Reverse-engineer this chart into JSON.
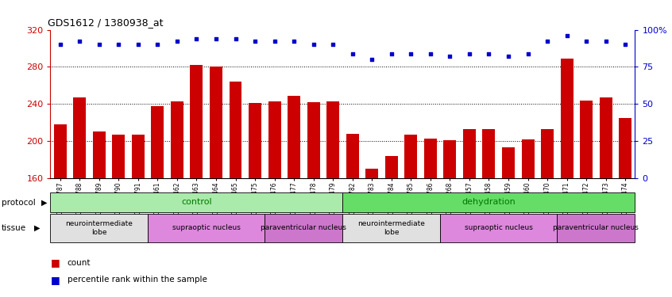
{
  "title": "GDS1612 / 1380938_at",
  "samples": [
    "GSM69787",
    "GSM69788",
    "GSM69789",
    "GSM69790",
    "GSM69791",
    "GSM69461",
    "GSM69462",
    "GSM69463",
    "GSM69464",
    "GSM69465",
    "GSM69475",
    "GSM69476",
    "GSM69477",
    "GSM69478",
    "GSM69479",
    "GSM69782",
    "GSM69783",
    "GSM69784",
    "GSM69785",
    "GSM69786",
    "GSM69268",
    "GSM69457",
    "GSM69458",
    "GSM69459",
    "GSM69460",
    "GSM69470",
    "GSM69471",
    "GSM69472",
    "GSM69473",
    "GSM69474"
  ],
  "counts": [
    218,
    247,
    210,
    207,
    207,
    238,
    243,
    282,
    280,
    264,
    241,
    243,
    249,
    242,
    243,
    208,
    170,
    184,
    207,
    203,
    201,
    213,
    213,
    193,
    202,
    213,
    289,
    244,
    247,
    225
  ],
  "percentiles": [
    90,
    92,
    90,
    90,
    90,
    90,
    92,
    94,
    94,
    94,
    92,
    92,
    92,
    90,
    90,
    84,
    80,
    84,
    84,
    84,
    82,
    84,
    84,
    82,
    84,
    92,
    96,
    92,
    92,
    90
  ],
  "ylim_left": [
    160,
    320
  ],
  "ylim_right": [
    0,
    100
  ],
  "yticks_left": [
    160,
    200,
    240,
    280,
    320
  ],
  "yticks_right": [
    0,
    25,
    50,
    75,
    100
  ],
  "bar_color": "#cc0000",
  "dot_color": "#0000cc",
  "protocol_bands": [
    {
      "label": "control",
      "start": 0,
      "end": 15,
      "color": "#aaeaaa"
    },
    {
      "label": "dehydration",
      "start": 15,
      "end": 30,
      "color": "#66dd66"
    }
  ],
  "tissue_bands": [
    {
      "label": "neurointermediate\nlobe",
      "start": 0,
      "end": 5,
      "color": "#e0e0e0"
    },
    {
      "label": "supraoptic nucleus",
      "start": 5,
      "end": 11,
      "color": "#dd88dd"
    },
    {
      "label": "paraventricular nucleus",
      "start": 11,
      "end": 15,
      "color": "#cc77cc"
    },
    {
      "label": "neurointermediate\nlobe",
      "start": 15,
      "end": 20,
      "color": "#e0e0e0"
    },
    {
      "label": "supraoptic nucleus",
      "start": 20,
      "end": 26,
      "color": "#dd88dd"
    },
    {
      "label": "paraventricular nucleus",
      "start": 26,
      "end": 30,
      "color": "#cc77cc"
    }
  ]
}
